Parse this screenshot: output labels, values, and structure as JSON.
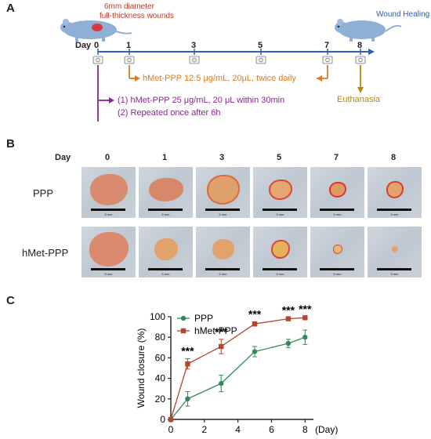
{
  "panel_a": {
    "letter": "A",
    "wound_desc_line1": "6mm  diameter",
    "wound_desc_line2": "full-thickness wounds",
    "wound_healing": "Wound Healing",
    "day_label": "Day",
    "timeline_days": [
      "0",
      "1",
      "3",
      "5",
      "7",
      "8"
    ],
    "treatment_daily": "hMet-PPP 12.5 μg/mL, 20μL, twice daily",
    "euthanasia": "Euthanasia",
    "initial_step1": "(1) hMet-PPP 25 μg/mL, 20 μL within 30min",
    "initial_step2": "(2) Repeated once after 6h",
    "colors": {
      "timeline": "#2e5fb0",
      "treatment": "#e07b22",
      "euthanasia": "#b8860b",
      "initial": "#8b2596"
    }
  },
  "panel_b": {
    "letter": "B",
    "day_label": "Day",
    "days": [
      "0",
      "1",
      "3",
      "5",
      "7",
      "8"
    ],
    "rows": [
      "PPP",
      "hMet-PPP"
    ],
    "scale_label": "5 mm"
  },
  "panel_c": {
    "letter": "C",
    "chart_data": {
      "type": "line",
      "x": [
        0,
        1,
        3,
        5,
        7,
        8
      ],
      "series": [
        {
          "name": "PPP",
          "color": "#2e8b57",
          "marker": "circle",
          "values": [
            0,
            20,
            35,
            66,
            74,
            80
          ],
          "errors": [
            0,
            7,
            8,
            5,
            4,
            7
          ]
        },
        {
          "name": "hMet-PPP",
          "color": "#b5452e",
          "marker": "square",
          "values": [
            0,
            54,
            71,
            93,
            98,
            99
          ],
          "errors": [
            0,
            5,
            7,
            2,
            1,
            1
          ]
        }
      ],
      "significance": [
        {
          "x": 1,
          "label": "***"
        },
        {
          "x": 3,
          "label": "***"
        },
        {
          "x": 5,
          "label": "***"
        },
        {
          "x": 7,
          "label": "***"
        },
        {
          "x": 8,
          "label": "***"
        }
      ],
      "xlim": [
        0,
        8.5
      ],
      "ylim": [
        0,
        100
      ],
      "xticks": [
        0,
        2,
        4,
        6,
        8
      ],
      "yticks": [
        0,
        20,
        40,
        60,
        80,
        100
      ],
      "xlabel": "(Day)",
      "ylabel": "Wound closure (%)",
      "legend_position": "top-left"
    }
  }
}
